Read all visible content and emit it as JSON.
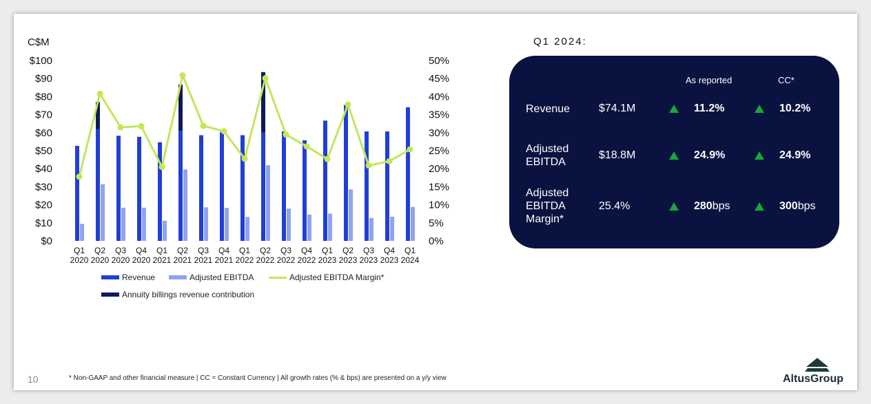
{
  "chart_data": {
    "type": "bar",
    "y_unit_label": "C$M",
    "ylim": [
      0,
      100
    ],
    "y_ticks": [
      "$0",
      "$10",
      "$20",
      "$30",
      "$40",
      "$50",
      "$60",
      "$70",
      "$80",
      "$90",
      "$100"
    ],
    "y2lim": [
      0,
      50
    ],
    "y2_ticks": [
      "0%",
      "5%",
      "10%",
      "15%",
      "20%",
      "25%",
      "30%",
      "35%",
      "40%",
      "45%",
      "50%"
    ],
    "categories": [
      [
        "Q1",
        "2020"
      ],
      [
        "Q2",
        "2020"
      ],
      [
        "Q3",
        "2020"
      ],
      [
        "Q4",
        "2020"
      ],
      [
        "Q1",
        "2021"
      ],
      [
        "Q2",
        "2021"
      ],
      [
        "Q3",
        "2021"
      ],
      [
        "Q4",
        "2021"
      ],
      [
        "Q1",
        "2022"
      ],
      [
        "Q2",
        "2022"
      ],
      [
        "Q3",
        "2022"
      ],
      [
        "Q4",
        "2022"
      ],
      [
        "Q1",
        "2023"
      ],
      [
        "Q2",
        "2023"
      ],
      [
        "Q3",
        "2023"
      ],
      [
        "Q4",
        "2023"
      ],
      [
        "Q1",
        "2024"
      ]
    ],
    "series": [
      {
        "name": "Revenue",
        "type": "bar",
        "color": "#1f3fd6",
        "values": [
          52.7,
          62.0,
          58.3,
          57.7,
          54.7,
          61.0,
          58.6,
          60.4,
          58.6,
          60.0,
          60.7,
          55.8,
          66.7,
          75.4,
          60.7,
          60.7,
          74.1
        ]
      },
      {
        "name": "Adjusted EBITDA",
        "type": "bar",
        "color": "#8fa3f0",
        "values": [
          9.4,
          31.4,
          18.4,
          18.4,
          11.2,
          39.6,
          18.6,
          18.3,
          13.3,
          42.0,
          17.9,
          14.6,
          15.1,
          28.5,
          12.7,
          13.4,
          18.8
        ]
      },
      {
        "name": "Adjusted EBITDA Margin*",
        "type": "line",
        "axis": "right",
        "color": "#c3e65a",
        "values": [
          17.8,
          40.8,
          31.5,
          31.8,
          20.5,
          45.9,
          31.9,
          30.4,
          22.8,
          45.1,
          29.5,
          26.2,
          22.7,
          37.8,
          20.9,
          22.1,
          25.4
        ]
      },
      {
        "name": "Annuity billings revenue contribution",
        "type": "stack",
        "color": "#0c1a5a",
        "values": [
          0,
          15.0,
          0,
          0,
          0,
          25.7,
          0,
          0,
          0,
          33.6,
          0,
          0,
          0,
          0,
          0,
          0,
          0
        ]
      }
    ],
    "legend_position": "bottom",
    "grid": false
  },
  "summary": {
    "period": "Q1 2024:",
    "columns": [
      "As reported",
      "CC*"
    ],
    "rows": [
      {
        "label": "Revenue",
        "value": "$74.1M",
        "reported": "11.2%",
        "reported_unit": "",
        "cc": "10.2%",
        "cc_unit": ""
      },
      {
        "label": "Adjusted EBITDA",
        "value": "$18.8M",
        "reported": "24.9%",
        "reported_unit": "",
        "cc": "24.9%",
        "cc_unit": ""
      },
      {
        "label": "Adjusted EBITDA Margin*",
        "value": "25.4%",
        "reported": "280",
        "reported_unit": " bps",
        "cc": "300",
        "cc_unit": " bps"
      }
    ],
    "up_color": "#1aa53a",
    "card_color": "#0a1340"
  },
  "footer": {
    "page_number": "10",
    "note": "* Non-GAAP and other financial measure | CC = Constant Currency | All growth rates (% & bps) are presented on a y/y view"
  },
  "logo": {
    "name": "AltusGroup"
  }
}
